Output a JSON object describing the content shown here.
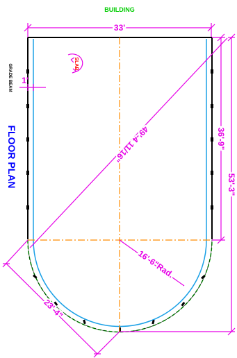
{
  "header": {
    "title": "BUILDING"
  },
  "labels": {
    "floor_plan": "FLOOR PLAN",
    "grade_beam": "GRADE BEAM",
    "slab": "SLAB"
  },
  "dimensions": {
    "overall_width": "33'",
    "beam_offset": "1'",
    "diagonal": "49'-4 11/16\"",
    "rect_length": "36'-9\"",
    "total_length": "53'-3\"",
    "radius": "16'-6\"Rad.",
    "chord": "23'-4\""
  },
  "colors": {
    "outline": "#000000",
    "beam": "#1aa0e6",
    "centerline": "#ff8c00",
    "dimension": "#e600e6",
    "title": "#00cc00",
    "floor_plan": "#0000ff",
    "slab": "#ff0000",
    "hatch": "#00cc00"
  }
}
